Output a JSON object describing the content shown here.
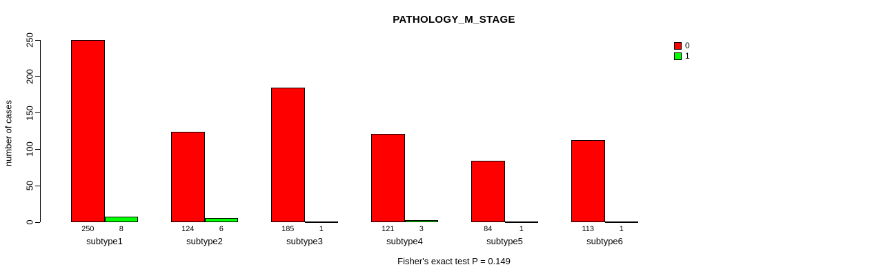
{
  "title": "PATHOLOGY_M_STAGE",
  "ylabel": "number of cases",
  "footer": "Fisher's exact test P = 0.149",
  "chart_data": {
    "type": "bar",
    "title": "PATHOLOGY_M_STAGE",
    "xlabel": "",
    "ylabel": "number of cases",
    "categories": [
      "subtype1",
      "subtype2",
      "subtype3",
      "subtype4",
      "subtype5",
      "subtype6"
    ],
    "series": [
      {
        "name": "0",
        "color": "#FF0000",
        "values": [
          250,
          124,
          185,
          121,
          84,
          113
        ]
      },
      {
        "name": "1",
        "color": "#00FF00",
        "values": [
          8,
          6,
          1,
          3,
          1,
          1
        ]
      }
    ],
    "bar_value_labels": {
      "0": [
        "250",
        "124",
        "185",
        "121",
        "84",
        "113"
      ],
      "1": [
        "8",
        "6",
        "1",
        "3",
        "1",
        "1"
      ]
    },
    "ylim": [
      0,
      250
    ],
    "yticks": [
      0,
      50,
      100,
      150,
      200,
      250
    ],
    "grid": false,
    "legend_position": "top-right",
    "legend_entries": [
      {
        "label": "0",
        "color": "#FF0000"
      },
      {
        "label": "1",
        "color": "#00FF00"
      }
    ],
    "annotation": "Fisher's exact test P = 0.149"
  }
}
